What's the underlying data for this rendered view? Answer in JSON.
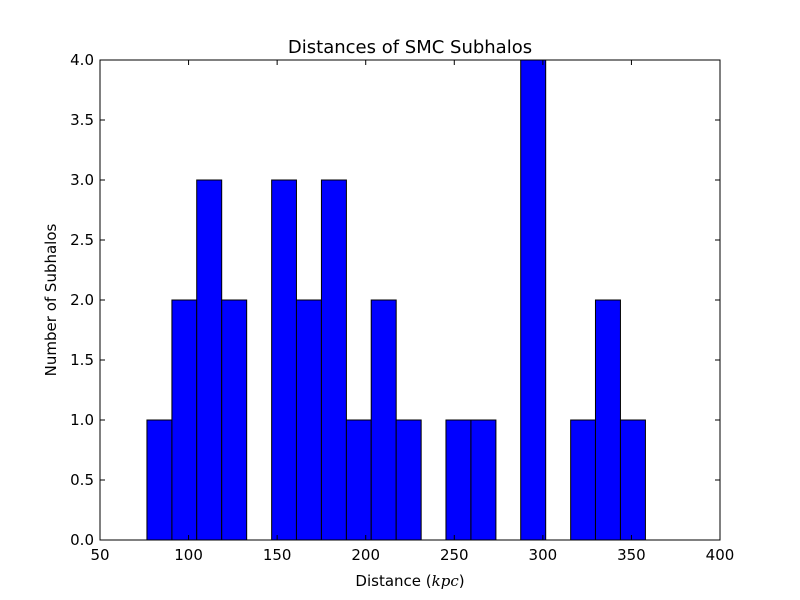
{
  "chart_data": {
    "type": "bar",
    "title": "Distances of SMC Subhalos",
    "xlabel_text": "Distance (",
    "xlabel_math": "kpc",
    "xlabel_close": ")",
    "ylabel": "Number of Subhalos",
    "xlim": [
      50,
      400
    ],
    "ylim": [
      0,
      4
    ],
    "xticks": [
      50,
      100,
      150,
      200,
      250,
      300,
      350,
      400
    ],
    "yticks": [
      0.0,
      0.5,
      1.0,
      1.5,
      2.0,
      2.5,
      3.0,
      3.5,
      4.0
    ],
    "bar_color": "#0000ff",
    "edge_color": "#000000",
    "grid": false,
    "bins": [
      {
        "x0": 76.5,
        "x1": 90.6,
        "value": 1
      },
      {
        "x0": 90.6,
        "x1": 104.6,
        "value": 2
      },
      {
        "x0": 104.6,
        "x1": 118.7,
        "value": 3
      },
      {
        "x0": 118.7,
        "x1": 132.8,
        "value": 2
      },
      {
        "x0": 132.8,
        "x1": 146.9,
        "value": 0
      },
      {
        "x0": 146.9,
        "x1": 160.9,
        "value": 3
      },
      {
        "x0": 160.9,
        "x1": 175.0,
        "value": 2
      },
      {
        "x0": 175.0,
        "x1": 189.1,
        "value": 3
      },
      {
        "x0": 189.1,
        "x1": 203.1,
        "value": 1
      },
      {
        "x0": 203.1,
        "x1": 217.2,
        "value": 2
      },
      {
        "x0": 217.2,
        "x1": 231.3,
        "value": 1
      },
      {
        "x0": 231.3,
        "x1": 245.3,
        "value": 0
      },
      {
        "x0": 245.3,
        "x1": 259.4,
        "value": 1
      },
      {
        "x0": 259.4,
        "x1": 273.5,
        "value": 1
      },
      {
        "x0": 273.5,
        "x1": 287.5,
        "value": 0
      },
      {
        "x0": 287.5,
        "x1": 301.6,
        "value": 4
      },
      {
        "x0": 301.6,
        "x1": 315.7,
        "value": 0
      },
      {
        "x0": 315.7,
        "x1": 329.7,
        "value": 1
      },
      {
        "x0": 329.7,
        "x1": 343.8,
        "value": 2
      },
      {
        "x0": 343.8,
        "x1": 357.9,
        "value": 1
      }
    ]
  }
}
